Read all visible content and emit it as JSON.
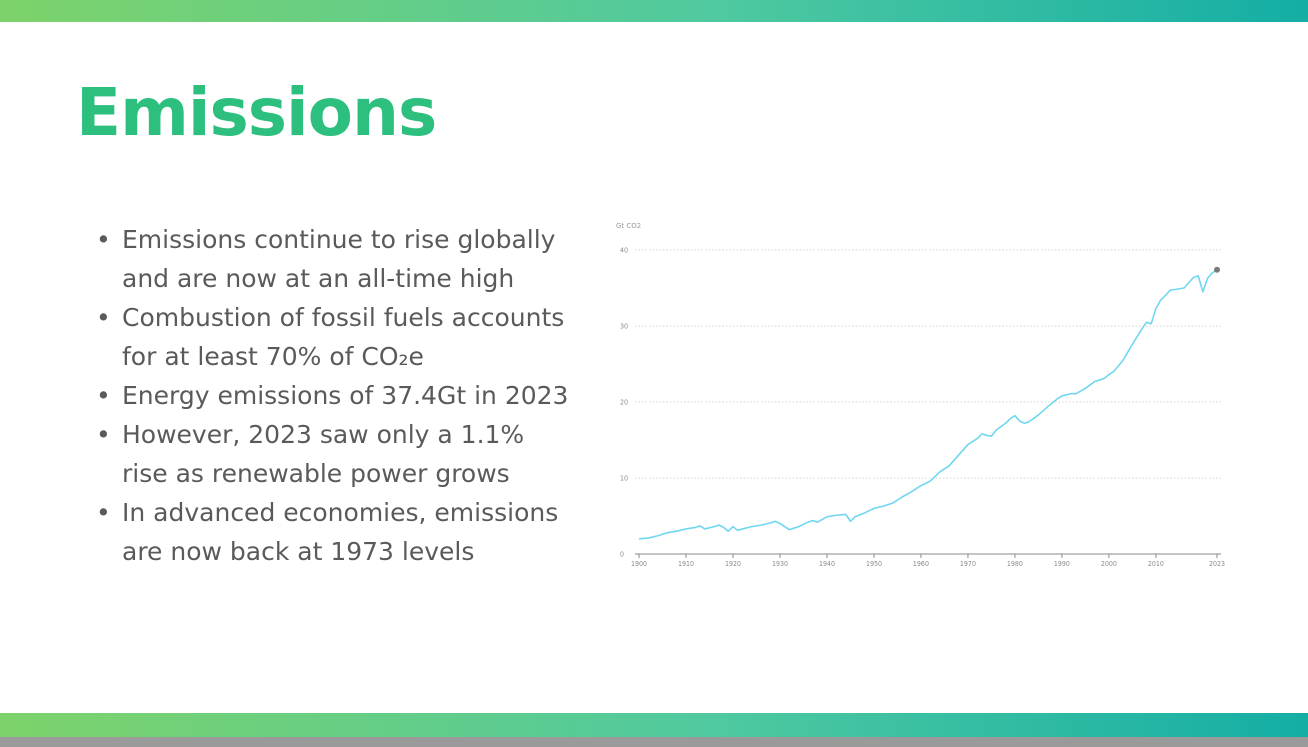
{
  "slide": {
    "title": "Emissions",
    "bullets": [
      "Emissions continue to rise globally and are now at an all-time high",
      "Combustion of fossil fuels accounts for at least 70% of CO₂e",
      "Energy emissions of 37.4Gt in 2023",
      "However, 2023 saw only a 1.1% rise as renewable power grows",
      "In advanced economies, emissions are now back at 1973 levels"
    ],
    "colors": {
      "title": "#2cbf7e",
      "line": "#6fd7f0",
      "bar_start": "#7dd36a",
      "bar_end": "#14aea5"
    }
  },
  "chart_data": {
    "type": "line",
    "ylabel": "Gt CO2",
    "ylim": [
      0,
      40
    ],
    "yticks": [
      0,
      10,
      20,
      30,
      40
    ],
    "xlim": [
      1900,
      2023
    ],
    "xticks": [
      1900,
      1910,
      1920,
      1930,
      1940,
      1950,
      1960,
      1970,
      1980,
      1990,
      2000,
      2010,
      2023
    ],
    "grid": true,
    "series": [
      {
        "x": [
          1900,
          1902,
          1904,
          1906,
          1908,
          1910,
          1912,
          1913,
          1914,
          1916,
          1917,
          1918,
          1919,
          1920,
          1921,
          1922,
          1924,
          1926,
          1928,
          1929,
          1930,
          1932,
          1934,
          1936,
          1937,
          1938,
          1940,
          1942,
          1944,
          1945,
          1946,
          1948,
          1950,
          1952,
          1954,
          1956,
          1958,
          1960,
          1962,
          1964,
          1966,
          1968,
          1970,
          1972,
          1973,
          1974,
          1975,
          1976,
          1978,
          1979,
          1980,
          1981,
          1982,
          1983,
          1985,
          1987,
          1989,
          1990,
          1992,
          1993,
          1995,
          1997,
          1999,
          2000,
          2001,
          2003,
          2005,
          2007,
          2008,
          2009,
          2010,
          2011,
          2012,
          2013,
          2014,
          2016,
          2018,
          2019,
          2020,
          2021,
          2022,
          2023
        ],
        "y": [
          2.0,
          2.1,
          2.4,
          2.8,
          3.0,
          3.3,
          3.5,
          3.7,
          3.3,
          3.6,
          3.8,
          3.5,
          3.0,
          3.6,
          3.1,
          3.3,
          3.6,
          3.8,
          4.1,
          4.3,
          4.0,
          3.2,
          3.6,
          4.2,
          4.4,
          4.2,
          4.9,
          5.1,
          5.2,
          4.3,
          4.9,
          5.4,
          6.0,
          6.3,
          6.7,
          7.5,
          8.2,
          9.0,
          9.6,
          10.8,
          11.6,
          13.0,
          14.4,
          15.2,
          15.8,
          15.6,
          15.5,
          16.3,
          17.2,
          17.8,
          18.2,
          17.5,
          17.2,
          17.4,
          18.3,
          19.4,
          20.4,
          20.8,
          21.1,
          21.1,
          21.8,
          22.7,
          23.1,
          23.6,
          24.0,
          25.5,
          27.6,
          29.6,
          30.5,
          30.3,
          32.3,
          33.4,
          34.0,
          34.7,
          34.8,
          35.0,
          36.4,
          36.6,
          34.5,
          36.3,
          37.0,
          37.4
        ]
      }
    ]
  }
}
